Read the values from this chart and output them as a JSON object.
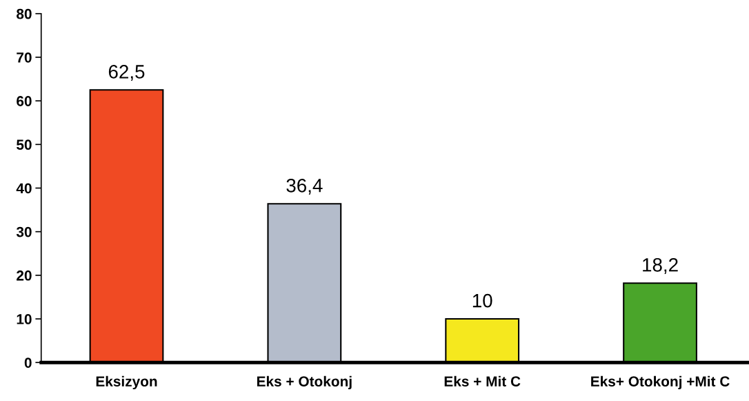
{
  "chart_data": {
    "type": "bar",
    "categories": [
      "Eksizyon",
      "Eks + Otokonj",
      "Eks + Mit C",
      "Eks+ Otokonj +Mit C"
    ],
    "values": [
      62.5,
      36.4,
      10,
      18.2
    ],
    "value_labels": [
      "62,5",
      "36,4",
      "10",
      "18,2"
    ],
    "colors": [
      "#f04a23",
      "#b4bccb",
      "#f5e81e",
      "#4aa52a"
    ],
    "ylim": [
      0,
      80
    ],
    "yticks": [
      0,
      10,
      20,
      30,
      40,
      50,
      60,
      70,
      80
    ],
    "grid": false,
    "legend": false
  }
}
